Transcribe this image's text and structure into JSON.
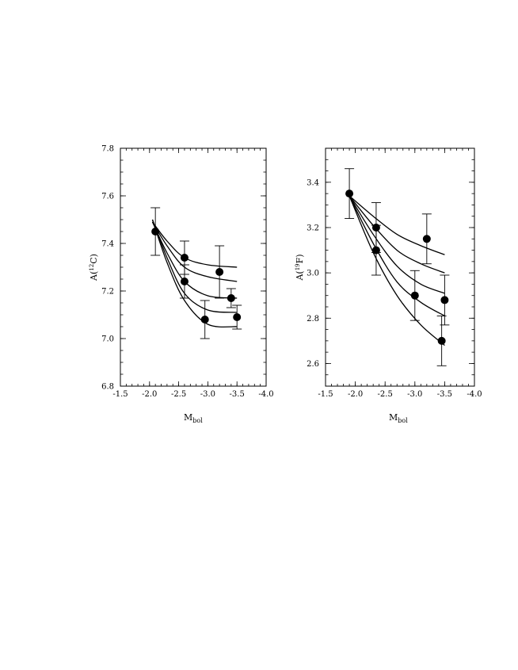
{
  "chart_data": [
    {
      "type": "scatter",
      "title": "",
      "xlabel": "M",
      "xlabel_sub": "bol",
      "ylabel_main": "A(",
      "ylabel_sup": "12",
      "ylabel_elem": "C)",
      "xlim": [
        -1.5,
        -4.0
      ],
      "ylim": [
        6.8,
        7.8
      ],
      "xticks": [
        -1.5,
        -2.0,
        -2.5,
        -3.0,
        -3.5,
        -4.0
      ],
      "xtick_labels": [
        "-1.5",
        "-2.0",
        "-2.5",
        "-3.0",
        "-3.5",
        "-4.0"
      ],
      "yticks": [
        6.8,
        7.0,
        7.2,
        7.4,
        7.6,
        7.8
      ],
      "ytick_labels": [
        "6.8",
        "7.0",
        "7.2",
        "7.4",
        "7.6",
        "7.8"
      ],
      "grid": false,
      "points": [
        {
          "x": -2.1,
          "y": 7.45,
          "err": 0.1
        },
        {
          "x": -2.6,
          "y": 7.34,
          "err": 0.07
        },
        {
          "x": -2.6,
          "y": 7.24,
          "err": 0.07
        },
        {
          "x": -2.95,
          "y": 7.08,
          "err": 0.08
        },
        {
          "x": -3.2,
          "y": 7.28,
          "err": 0.11
        },
        {
          "x": -3.4,
          "y": 7.17,
          "err": 0.04
        },
        {
          "x": -3.5,
          "y": 7.09,
          "err": 0.05
        }
      ],
      "curves": [
        {
          "x": [
            -2.05,
            -2.3,
            -2.6,
            -3.0,
            -3.5
          ],
          "y": [
            7.49,
            7.41,
            7.34,
            7.31,
            7.3
          ]
        },
        {
          "x": [
            -2.05,
            -2.3,
            -2.6,
            -3.0,
            -3.5
          ],
          "y": [
            7.49,
            7.39,
            7.3,
            7.26,
            7.24
          ]
        },
        {
          "x": [
            -2.05,
            -2.3,
            -2.6,
            -3.0,
            -3.5
          ],
          "y": [
            7.49,
            7.36,
            7.24,
            7.18,
            7.17
          ]
        },
        {
          "x": [
            -2.05,
            -2.3,
            -2.6,
            -3.0,
            -3.5
          ],
          "y": [
            7.5,
            7.34,
            7.19,
            7.12,
            7.11
          ]
        },
        {
          "x": [
            -2.05,
            -2.3,
            -2.6,
            -3.0,
            -3.5
          ],
          "y": [
            7.5,
            7.32,
            7.16,
            7.06,
            7.05
          ]
        }
      ]
    },
    {
      "type": "scatter",
      "title": "",
      "xlabel": "M",
      "xlabel_sub": "bol",
      "ylabel_main": "A(",
      "ylabel_sup": "19",
      "ylabel_elem": "F)",
      "xlim": [
        -1.5,
        -4.0
      ],
      "ylim": [
        2.5,
        3.55
      ],
      "xticks": [
        -1.5,
        -2.0,
        -2.5,
        -3.0,
        -3.5,
        -4.0
      ],
      "xtick_labels": [
        "-1.5",
        "-2.0",
        "-2.5",
        "-3.0",
        "-3.5",
        "-4.0"
      ],
      "yticks": [
        2.6,
        2.8,
        3.0,
        3.2,
        3.4
      ],
      "ytick_labels": [
        "2.6",
        "2.8",
        "3.0",
        "3.2",
        "3.4"
      ],
      "grid": false,
      "points": [
        {
          "x": -1.9,
          "y": 3.35,
          "err": 0.11
        },
        {
          "x": -2.35,
          "y": 3.2,
          "err": 0.11
        },
        {
          "x": -2.35,
          "y": 3.1,
          "err": 0.11
        },
        {
          "x": -3.0,
          "y": 2.9,
          "err": 0.11
        },
        {
          "x": -3.2,
          "y": 3.15,
          "err": 0.11
        },
        {
          "x": -3.45,
          "y": 2.7,
          "err": 0.11
        },
        {
          "x": -3.5,
          "y": 2.88,
          "err": 0.11
        }
      ],
      "curves": [
        {
          "x": [
            -1.9,
            -2.3,
            -2.7,
            -3.1,
            -3.5
          ],
          "y": [
            3.34,
            3.25,
            3.17,
            3.12,
            3.08
          ]
        },
        {
          "x": [
            -1.9,
            -2.3,
            -2.7,
            -3.1,
            -3.5
          ],
          "y": [
            3.34,
            3.21,
            3.1,
            3.04,
            3.0
          ]
        },
        {
          "x": [
            -1.9,
            -2.3,
            -2.7,
            -3.1,
            -3.5
          ],
          "y": [
            3.34,
            3.17,
            3.03,
            2.95,
            2.91
          ]
        },
        {
          "x": [
            -1.9,
            -2.3,
            -2.7,
            -3.1,
            -3.5
          ],
          "y": [
            3.34,
            3.13,
            2.96,
            2.87,
            2.81
          ]
        },
        {
          "x": [
            -1.9,
            -2.3,
            -2.7,
            -3.1,
            -3.5
          ],
          "y": [
            3.34,
            3.09,
            2.9,
            2.77,
            2.68
          ]
        }
      ]
    }
  ]
}
